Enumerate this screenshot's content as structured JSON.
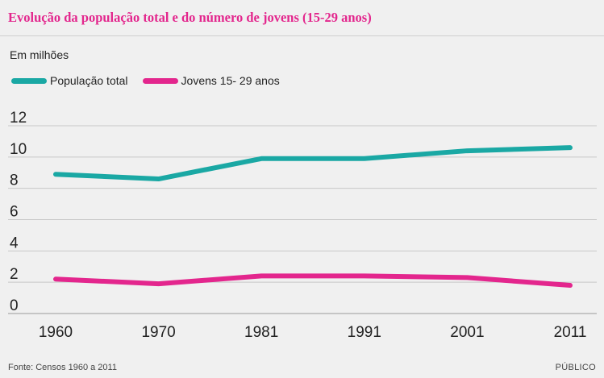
{
  "title": "Evolução da população total e do número de jovens (15-29 anos)",
  "unit_label": "Em milhões",
  "source": "Fonte: Censos 1960 a 2011",
  "brand": "PÚBLICO",
  "chart_data": {
    "type": "line",
    "categories": [
      "1960",
      "1970",
      "1981",
      "1991",
      "2001",
      "2011"
    ],
    "ylim": [
      0,
      12
    ],
    "yticks": [
      "0",
      "2",
      "4",
      "6",
      "8",
      "10",
      "12"
    ],
    "grid": true,
    "legend_position": "top-left",
    "series": [
      {
        "name": "População total",
        "color": "#1aa8a4",
        "values": [
          8.9,
          8.6,
          9.9,
          9.9,
          10.4,
          10.6
        ]
      },
      {
        "name": "Jovens 15- 29 anos",
        "color": "#e3268d",
        "values": [
          2.2,
          1.9,
          2.4,
          2.4,
          2.3,
          1.8
        ]
      }
    ]
  }
}
